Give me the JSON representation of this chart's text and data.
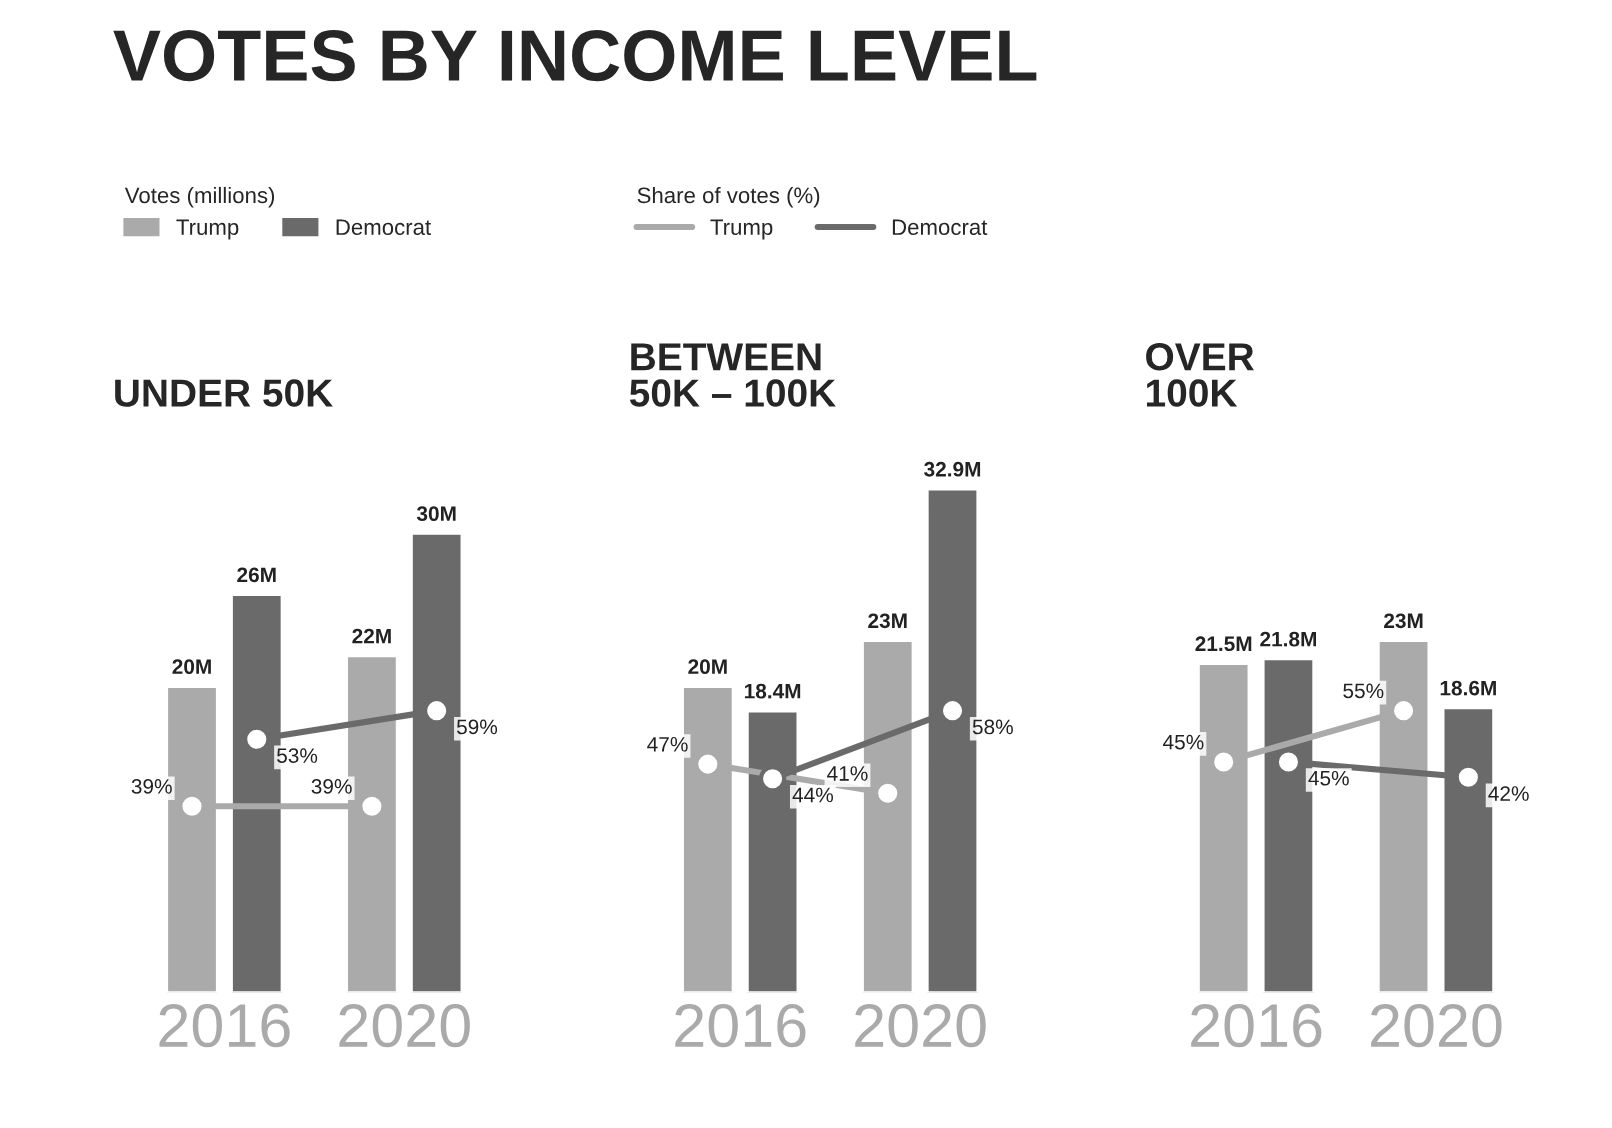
{
  "chart_data": [
    {
      "type": "bar",
      "title": "UNDER 50K",
      "annotations": [
        "VOTES BY INCOME LEVEL"
      ],
      "categories": [
        "2016",
        "2020"
      ],
      "tick_labels": "x",
      "legend": "top right",
      "legend_title": "Votes (millions)",
      "y2label": "Share of votes (%)",
      "grid": false,
      "marker": "circle",
      "series": [
        {
          "name": "Trump",
          "color": "#aaaaaa",
          "values": [
            20,
            22
          ],
          "value_labels": [
            "20M",
            "22M"
          ]
        },
        {
          "name": "Democrat",
          "color": "#6a6a6a",
          "values": [
            26,
            30
          ],
          "value_labels": [
            "26M",
            "30M"
          ]
        },
        {
          "name": "Trump",
          "type": "line",
          "axis": "y2",
          "color": "#aaaaaa",
          "values": [
            39,
            39
          ],
          "value_labels": [
            "39%",
            "39%"
          ]
        },
        {
          "name": "Democrat",
          "type": "line",
          "axis": "y2",
          "color": "#6a6a6a",
          "values": [
            53,
            59
          ],
          "value_labels": [
            "53%",
            "59%"
          ]
        }
      ]
    },
    {
      "type": "bar",
      "title": "BETWEEN\n50K – 100K",
      "categories": [
        "2016",
        "2020"
      ],
      "tick_labels": "x",
      "grid": false,
      "marker": "circle",
      "series": [
        {
          "color": "#aaaaaa",
          "values": [
            20,
            23
          ],
          "value_labels": [
            "20M",
            "23M"
          ]
        },
        {
          "color": "#6a6a6a",
          "values": [
            18.4,
            32.9
          ],
          "value_labels": [
            "18.4M",
            "32.9M"
          ]
        },
        {
          "type": "line",
          "axis": "y2",
          "color": "#aaaaaa",
          "values": [
            47,
            41
          ],
          "value_labels": [
            "47%",
            "41%"
          ]
        },
        {
          "type": "line",
          "axis": "y2",
          "color": "#6a6a6a",
          "values": [
            44,
            58
          ],
          "value_labels": [
            "44%",
            "58%"
          ]
        }
      ]
    },
    {
      "type": "bar",
      "title": "OVER\n100K",
      "categories": [
        "2016",
        "2020"
      ],
      "tick_labels": "x",
      "grid": false,
      "marker": "circle",
      "series": [
        {
          "color": "#aaaaaa",
          "values": [
            21.5,
            23
          ],
          "value_labels": [
            "21.5M",
            "23M"
          ]
        },
        {
          "color": "#6a6a6a",
          "values": [
            21.8,
            18.6
          ],
          "value_labels": [
            "21.8M",
            "18.6M"
          ]
        },
        {
          "type": "line",
          "axis": "y2",
          "color": "#aaaaaa",
          "values": [
            45,
            55
          ],
          "value_labels": [
            "45%",
            "55%"
          ]
        },
        {
          "type": "line",
          "axis": "y2",
          "color": "#6a6a6a",
          "values": [
            45,
            42
          ],
          "value_labels": [
            "45%",
            "42%"
          ]
        }
      ]
    }
  ]
}
